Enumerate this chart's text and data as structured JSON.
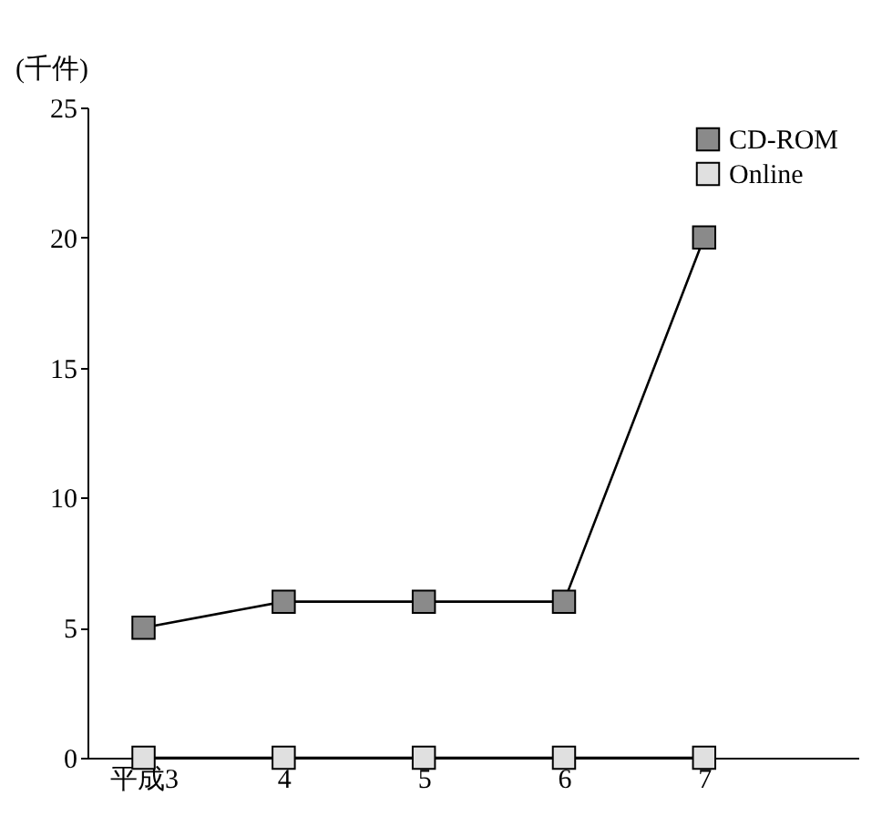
{
  "chart_data": {
    "type": "line",
    "ylabel": "(千件)",
    "categories": [
      "平成3",
      "4",
      "5",
      "6",
      "7"
    ],
    "series": [
      {
        "name": "CD-ROM",
        "color": "#8a8a8a",
        "values": [
          5,
          6,
          6,
          6,
          20
        ]
      },
      {
        "name": "Online",
        "color": "#e0e0e0",
        "values": [
          0,
          0,
          0,
          0,
          0
        ]
      }
    ],
    "ylim": [
      0,
      25
    ],
    "yticks": [
      0,
      5,
      10,
      15,
      20,
      25
    ],
    "grid": false,
    "legend": "top right",
    "marker": "square",
    "line_style": "solid"
  }
}
